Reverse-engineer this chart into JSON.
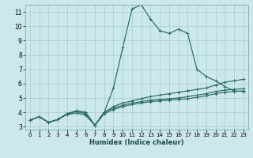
{
  "xlabel": "Humidex (Indice chaleur)",
  "xlim": [
    -0.5,
    23.5
  ],
  "ylim": [
    2.8,
    11.5
  ],
  "xticks": [
    0,
    1,
    2,
    3,
    4,
    5,
    6,
    7,
    8,
    9,
    10,
    11,
    12,
    13,
    14,
    15,
    16,
    17,
    18,
    19,
    20,
    21,
    22,
    23
  ],
  "yticks": [
    3,
    4,
    5,
    6,
    7,
    8,
    9,
    10,
    11
  ],
  "bg_color": "#cce8ea",
  "line_color": "#2a6b62",
  "grid_color": "#9fc8c8",
  "series": [
    {
      "x": [
        0,
        1,
        2,
        3,
        4,
        5,
        6,
        7,
        8,
        9,
        10,
        11,
        12,
        13,
        14,
        15,
        16,
        17,
        18,
        19,
        20,
        21,
        22,
        23
      ],
      "y": [
        3.45,
        3.7,
        3.3,
        3.5,
        3.9,
        4.1,
        4.0,
        3.1,
        4.0,
        5.7,
        8.5,
        11.2,
        11.5,
        10.5,
        9.7,
        9.5,
        9.8,
        9.5,
        7.0,
        6.5,
        6.2,
        5.8,
        5.5,
        5.45
      ]
    },
    {
      "x": [
        0,
        1,
        2,
        3,
        4,
        5,
        6,
        7,
        8,
        9,
        10,
        11,
        12,
        13,
        14,
        15,
        16,
        17,
        18,
        19,
        20,
        21,
        22,
        23
      ],
      "y": [
        3.45,
        3.7,
        3.3,
        3.5,
        3.9,
        4.1,
        4.0,
        3.1,
        4.0,
        4.4,
        4.65,
        4.8,
        4.95,
        5.1,
        5.2,
        5.3,
        5.4,
        5.5,
        5.6,
        5.7,
        5.9,
        6.1,
        6.2,
        6.3
      ]
    },
    {
      "x": [
        0,
        1,
        2,
        3,
        4,
        5,
        6,
        7,
        8,
        9,
        10,
        11,
        12,
        13,
        14,
        15,
        16,
        17,
        18,
        19,
        20,
        21,
        22,
        23
      ],
      "y": [
        3.45,
        3.7,
        3.3,
        3.5,
        3.9,
        4.05,
        3.9,
        3.1,
        4.0,
        4.3,
        4.5,
        4.65,
        4.75,
        4.85,
        4.9,
        4.95,
        5.0,
        5.1,
        5.2,
        5.3,
        5.45,
        5.55,
        5.6,
        5.65
      ]
    },
    {
      "x": [
        0,
        1,
        2,
        3,
        4,
        5,
        6,
        7,
        8,
        9,
        10,
        11,
        12,
        13,
        14,
        15,
        16,
        17,
        18,
        19,
        20,
        21,
        22,
        23
      ],
      "y": [
        3.45,
        3.7,
        3.3,
        3.5,
        3.85,
        3.95,
        3.8,
        3.1,
        3.9,
        4.2,
        4.4,
        4.55,
        4.65,
        4.75,
        4.8,
        4.85,
        4.9,
        4.95,
        5.05,
        5.15,
        5.3,
        5.4,
        5.45,
        5.5
      ]
    }
  ]
}
